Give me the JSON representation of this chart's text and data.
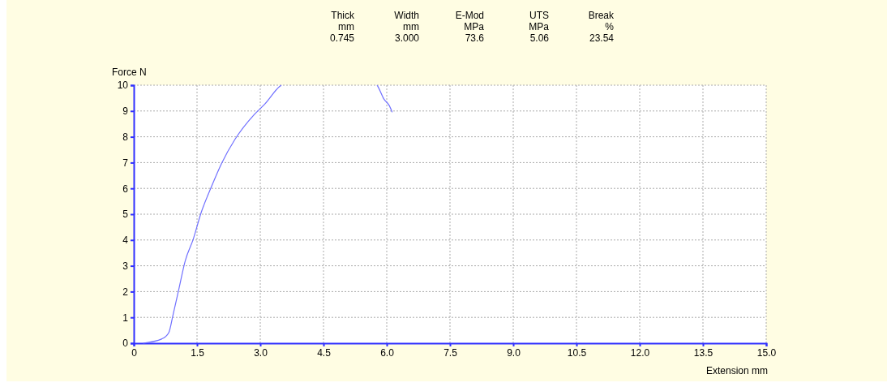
{
  "chart_data": {
    "type": "line",
    "xlabel": "Extension mm",
    "ylabel": "Force N",
    "annotations": [
      "Thick",
      "Width",
      "E-Mod",
      "UTS",
      "Break",
      "mm",
      "mm",
      "MPa",
      "MPa",
      "%",
      "0.745",
      "3.000",
      "73.6",
      "5.06",
      "23.54"
    ],
    "series": [
      {
        "color": "#7070ff",
        "x": [
          0.22,
          0.67,
          0.83,
          0.93,
          1.06,
          1.22,
          1.41,
          1.6,
          1.83,
          2.08,
          2.4,
          2.85,
          3.11,
          3.46,
          3.5,
          null,
          5.77,
          5.79,
          5.93,
          6.06,
          6.13
        ],
        "values": [
          0,
          0.17,
          0.41,
          1.09,
          2.03,
          3.19,
          4.03,
          5.07,
          6.02,
          6.96,
          7.9,
          8.85,
          9.27,
          9.95,
          10,
          null,
          10,
          9.95,
          9.47,
          9.21,
          8.95
        ]
      }
    ],
    "xlim": [
      0,
      15
    ],
    "ylim": [
      0,
      10
    ],
    "xticks": [
      0,
      1.5,
      {
        "value": 3,
        "label": "3.0"
      },
      4.5,
      {
        "value": 6,
        "label": "6.0"
      },
      7.5,
      {
        "value": 9,
        "label": "9.0"
      },
      10.5,
      {
        "value": 12,
        "label": "12.0"
      },
      13.5,
      {
        "value": 15,
        "label": "15.0"
      }
    ],
    "yticks": [
      0,
      1,
      2,
      3,
      4,
      5,
      6,
      7,
      8,
      9,
      10
    ],
    "grid": true,
    "marker": "none",
    "line_style": "solid"
  }
}
